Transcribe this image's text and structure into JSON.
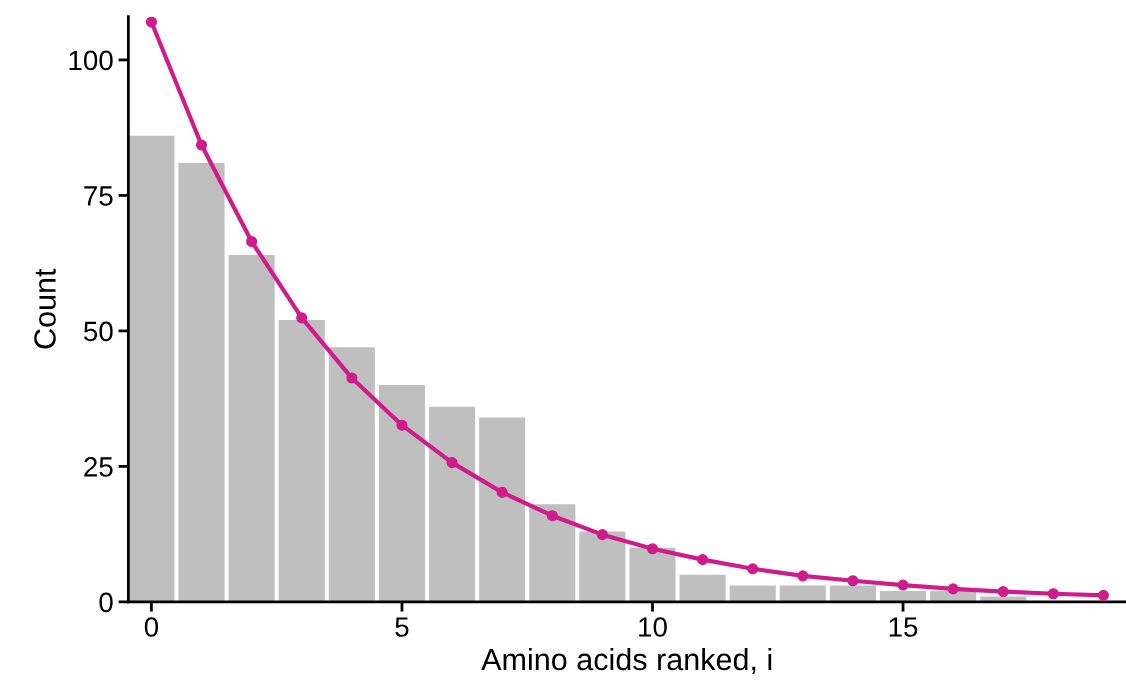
{
  "chart_data": {
    "type": "bar",
    "xlabel": "Amino acids ranked, i",
    "ylabel": "Count",
    "x": [
      0,
      1,
      2,
      3,
      4,
      5,
      6,
      7,
      8,
      9,
      10,
      11,
      12,
      13,
      14,
      15,
      16,
      17,
      18,
      19
    ],
    "series": [
      {
        "color": "#bfbfbf",
        "values": [
          86,
          81,
          64,
          52,
          47,
          40,
          36,
          34,
          18,
          13,
          10,
          5,
          3,
          3,
          3,
          2,
          2,
          1,
          0,
          0
        ]
      },
      {
        "type": "line",
        "color": "#d01c8b",
        "marker": "circle",
        "values": [
          107,
          84.3,
          66.5,
          52.4,
          41.3,
          32.6,
          25.7,
          20.2,
          15.9,
          12.4,
          9.8,
          7.8,
          6.1,
          4.8,
          3.9,
          3.1,
          2.4,
          1.9,
          1.5,
          1.2
        ]
      }
    ],
    "xlim": [
      -0.46,
      19.45
    ],
    "ylim": [
      0,
      108
    ],
    "xticks": [
      0,
      5,
      10,
      15
    ],
    "yticks": [
      0,
      25,
      50,
      75,
      100
    ],
    "grid": false,
    "legend": false
  }
}
